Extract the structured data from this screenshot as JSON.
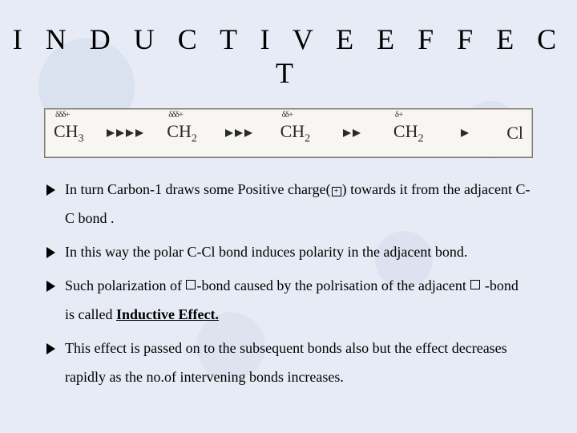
{
  "title": "I N D U C T I V E   E F F E C T",
  "diagram": {
    "background": "#f8f6f2",
    "border_outer": "#7f7a72",
    "border_inner": "#bfbcb6",
    "groups": [
      {
        "label": "CH",
        "sub": "3",
        "charge": "δδδ+"
      },
      {
        "label": "CH",
        "sub": "2",
        "charge": "δδδ+"
      },
      {
        "label": "CH",
        "sub": "2",
        "charge": "δδ+"
      },
      {
        "label": "CH",
        "sub": "2",
        "charge": "δ+"
      },
      {
        "label": "Cl",
        "sub": "",
        "charge": ""
      }
    ],
    "arrow_counts": [
      4,
      3,
      2,
      1
    ],
    "arrow_color": "#2a2a2a"
  },
  "bullets": [
    {
      "parts": [
        {
          "t": "text",
          "v": "In turn Carbon-1 draws some Positive charge("
        },
        {
          "t": "box",
          "v": "+"
        },
        {
          "t": "text",
          "v": ") towards it from the adjacent C-C bond ."
        }
      ]
    },
    {
      "parts": [
        {
          "t": "text",
          "v": "In this way the polar C-Cl bond induces polarity in the adjacent bond."
        }
      ]
    },
    {
      "parts": [
        {
          "t": "text",
          "v": "Such polarization of "
        },
        {
          "t": "box",
          "v": ""
        },
        {
          "t": "text",
          "v": "-bond caused by the polrisation of the adjacent "
        },
        {
          "t": "box",
          "v": ""
        },
        {
          "t": "text",
          "v": " -bond is called "
        },
        {
          "t": "ub",
          "v": "Inductive Effect."
        }
      ]
    },
    {
      "parts": [
        {
          "t": "text",
          "v": "This effect is passed on to the subsequent bonds also but the effect decreases rapidly as the no.of intervening bonds increases."
        }
      ]
    }
  ],
  "style": {
    "page_bg": "#e6ebf5",
    "title_fontsize": 36,
    "title_letterspacing": 10,
    "body_fontsize": 18,
    "line_height": 2.0
  }
}
